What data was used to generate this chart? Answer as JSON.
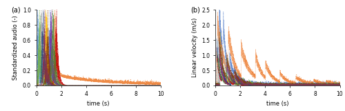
{
  "subplot_a": {
    "label": "(a)",
    "ylabel": "Standardized audio (-)",
    "xlabel": "time (s)",
    "xlim": [
      0,
      10
    ],
    "ylim": [
      0,
      1.0
    ],
    "yticks": [
      0.0,
      0.2,
      0.4,
      0.6,
      0.8,
      1.0
    ]
  },
  "subplot_b": {
    "label": "(b)",
    "ylabel": "Linear velocity (m/s)",
    "xlabel": "time (s)",
    "xlim": [
      0,
      10
    ],
    "ylim": [
      0,
      2.5
    ],
    "yticks": [
      0.0,
      0.5,
      1.0,
      1.5,
      2.0,
      2.5
    ]
  },
  "colors": [
    "#4472c4",
    "#ed7d31",
    "#a5a5a5",
    "#ffc000",
    "#5b9bd5",
    "#70ad47",
    "#c00000",
    "#7030a0",
    "#264478",
    "#843c0c",
    "#538135",
    "#833052"
  ],
  "n_series": 12,
  "seed": 7
}
